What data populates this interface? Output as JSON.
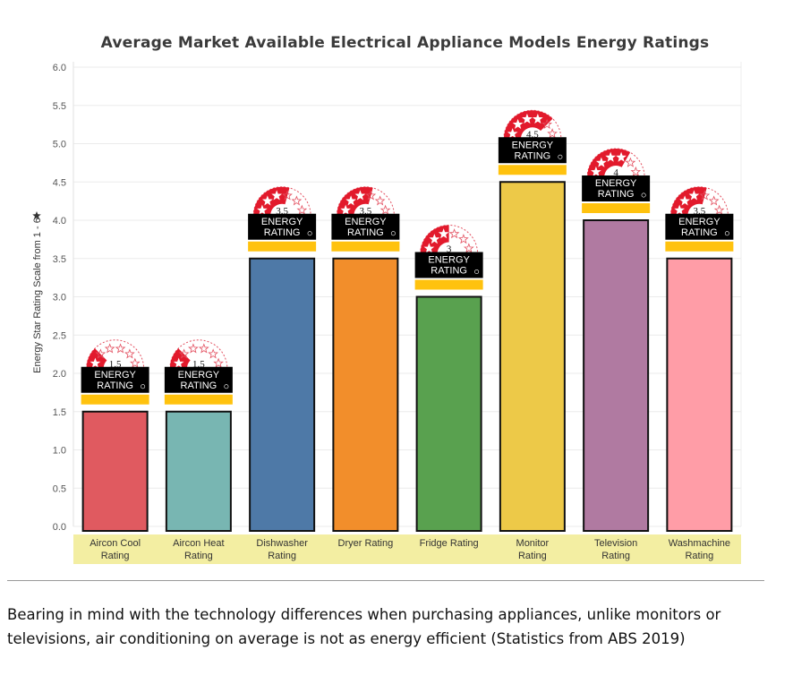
{
  "chart_data": {
    "type": "bar",
    "title": "Average Market Available Electrical Appliance Models Energy Ratings",
    "ylabel": "Energy Star Rating Scale from 1 - 6",
    "ylim": [
      0,
      6
    ],
    "yticks": [
      "0.0",
      "0.5",
      "1.0",
      "1.5",
      "2.0",
      "2.5",
      "3.0",
      "3.5",
      "4.0",
      "4.5",
      "5.0",
      "5.5",
      "6.0"
    ],
    "categories": [
      [
        "Aircon Cool",
        "Rating"
      ],
      [
        "Aircon Heat",
        "Rating"
      ],
      [
        "Dishwasher",
        "Rating"
      ],
      [
        "Dryer Rating"
      ],
      [
        "Fridge Rating"
      ],
      [
        "Monitor",
        "Rating"
      ],
      [
        "Television",
        "Rating"
      ],
      [
        "Washmachine",
        "Rating"
      ]
    ],
    "values": [
      1.5,
      1.5,
      3.5,
      3.5,
      3.0,
      4.5,
      4.0,
      3.5
    ],
    "badge_labels": [
      "1.5",
      "1.5",
      "3.5",
      "3.5",
      "3",
      "4.5",
      "4",
      "3.5"
    ],
    "colors": [
      "#e05a60",
      "#78b6b2",
      "#4e79a7",
      "#f28e2b",
      "#59a14f",
      "#edc948",
      "#b07aa1",
      "#ff9da7"
    ],
    "badge_text": [
      "ENERGY",
      "RATING"
    ],
    "grid": true,
    "legend": "none"
  },
  "caption": "Bearing in mind with the technology differences when purchasing appliances, unlike monitors or televisions, air conditioning on average is not as energy efficient (Statistics from ABS 2019)"
}
